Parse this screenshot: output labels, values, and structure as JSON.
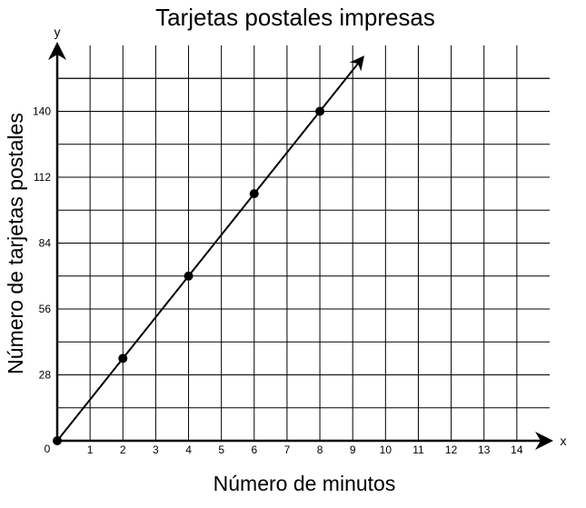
{
  "chart_data": {
    "type": "line",
    "title": "Tarjetas postales impresas",
    "xlabel": "Número de minutos",
    "ylabel": "Número de tarjetas postales",
    "x_axis_letter": "x",
    "y_axis_letter": "y",
    "origin_label": "0",
    "xlim": [
      0,
      15
    ],
    "ylim": [
      0,
      168
    ],
    "x_grid_step": 1,
    "y_grid_step": 14,
    "grid": true,
    "x_ticks": [
      1,
      2,
      3,
      4,
      5,
      6,
      7,
      8,
      9,
      10,
      11,
      12,
      13,
      14
    ],
    "y_ticks": [
      28,
      56,
      84,
      112,
      140
    ],
    "series": [
      {
        "points": [
          {
            "x": 0,
            "y": 0
          },
          {
            "x": 2,
            "y": 35
          },
          {
            "x": 4,
            "y": 70
          },
          {
            "x": 6,
            "y": 105
          },
          {
            "x": 8,
            "y": 140
          }
        ],
        "line_extends_to_x": 9.3,
        "arrow_end": true
      }
    ],
    "colors": {
      "line": "#000000",
      "grid": "#000000",
      "background": "#ffffff"
    }
  }
}
